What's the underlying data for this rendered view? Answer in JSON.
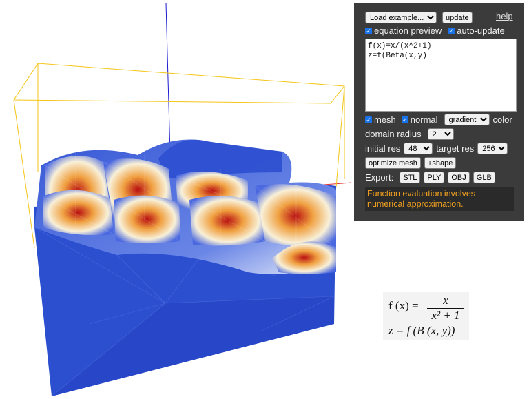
{
  "panel": {
    "example_select": "Load example...",
    "update_label": "update",
    "help_label": "help",
    "equation_preview_label": "equation preview",
    "auto_update_label": "auto-update",
    "equation_text": "f(x)=x/(x^2+1)\nz=f(Beta(x,y)",
    "mesh_label": "mesh",
    "normal_label": "normal",
    "color_mode": "gradient",
    "color_label": "color",
    "domain_radius_label": "domain radius",
    "domain_radius_value": "2",
    "initial_res_label": "initial res",
    "initial_res_value": "48",
    "target_res_label": "target res",
    "target_res_value": "256",
    "optimize_label": "optimize mesh",
    "shape_label": "+shape",
    "export_label": "Export:",
    "export_buttons": [
      "STL",
      "PLY",
      "OBJ",
      "GLB"
    ],
    "message": "Function evaluation involves numerical approximation."
  },
  "rendered_equation": {
    "f_lhs": "f (x) =",
    "numerator": "x",
    "denominator": "x² + 1",
    "line2": "z = f (B (x, y))"
  },
  "colors": {
    "panel_bg": "#3b3b3b",
    "mesh_blue": "#2c4fd0",
    "bbox_yellow": "#f5c518",
    "warning_orange": "#f0a020"
  }
}
